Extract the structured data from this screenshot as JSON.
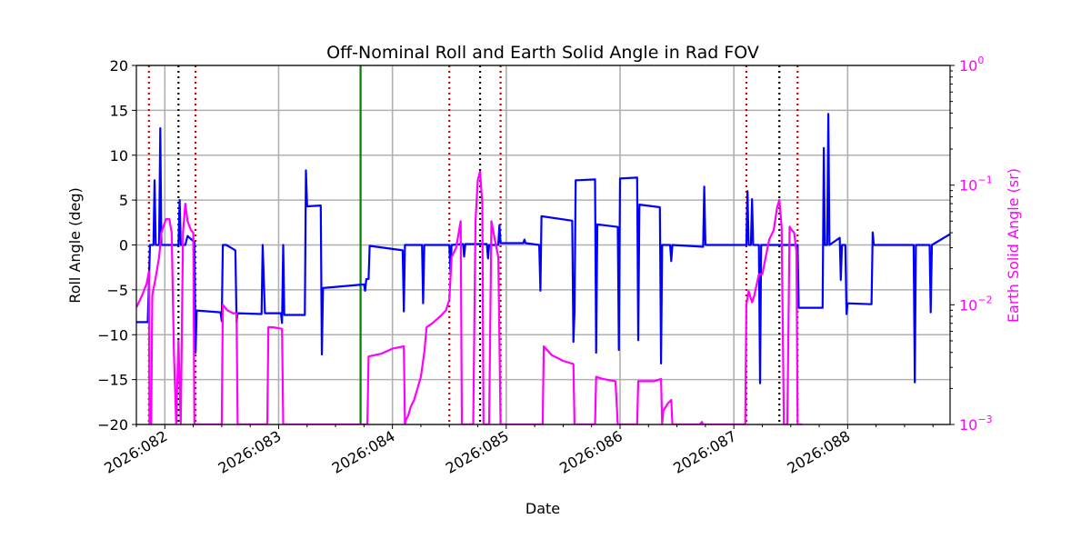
{
  "chart_data": {
    "type": "line",
    "title": "Off-Nominal Roll and Earth Solid Angle in Rad FOV",
    "xlabel": "Date",
    "ylabel": "Roll Angle (deg)",
    "y2label": "Earth Solid Angle (sr)",
    "xlim": [
      81.75,
      88.9
    ],
    "ylim": [
      -20,
      20
    ],
    "y2lim": [
      0.001,
      1
    ],
    "y2scale": "log",
    "grid": true,
    "xticks": [
      {
        "value": 82,
        "label": "2026:082"
      },
      {
        "value": 83,
        "label": "2026:083"
      },
      {
        "value": 84,
        "label": "2026:084"
      },
      {
        "value": 85,
        "label": "2026:085"
      },
      {
        "value": 86,
        "label": "2026:086"
      },
      {
        "value": 87,
        "label": "2026:087"
      },
      {
        "value": 88,
        "label": "2026:088"
      }
    ],
    "yticks": [
      {
        "value": 20,
        "label": "20"
      },
      {
        "value": 15,
        "label": "15"
      },
      {
        "value": 10,
        "label": "10"
      },
      {
        "value": 5,
        "label": "5"
      },
      {
        "value": 0,
        "label": "0"
      },
      {
        "value": -5,
        "label": "−5"
      },
      {
        "value": -10,
        "label": "−10"
      },
      {
        "value": -15,
        "label": "−15"
      },
      {
        "value": -20,
        "label": "−20"
      }
    ],
    "y2ticks": [
      {
        "value": 1,
        "base": "10",
        "exp": "0"
      },
      {
        "value": 0.1,
        "base": "10",
        "exp": "−1"
      },
      {
        "value": 0.01,
        "base": "10",
        "exp": "−2"
      },
      {
        "value": 0.001,
        "base": "10",
        "exp": "−3"
      }
    ],
    "colors": {
      "roll": "#0000ff",
      "earth": "#ff00ff",
      "now": "#008000",
      "window": "#cc0000",
      "center": "#000000",
      "grid": "#b0b0b0",
      "axis": "#000000"
    },
    "now_line": 83.72,
    "vlines": [
      {
        "x": 81.86,
        "kind": "window"
      },
      {
        "x": 82.12,
        "kind": "center"
      },
      {
        "x": 82.27,
        "kind": "window"
      },
      {
        "x": 84.5,
        "kind": "window"
      },
      {
        "x": 84.77,
        "kind": "center"
      },
      {
        "x": 84.95,
        "kind": "window"
      },
      {
        "x": 87.11,
        "kind": "window"
      },
      {
        "x": 87.4,
        "kind": "center"
      },
      {
        "x": 87.56,
        "kind": "window"
      }
    ],
    "series": [
      {
        "name": "Roll Angle",
        "axis": "left",
        "points": [
          [
            81.75,
            -8.6
          ],
          [
            81.85,
            -8.6
          ],
          [
            81.87,
            0
          ],
          [
            81.9,
            0
          ],
          [
            81.91,
            7.2
          ],
          [
            81.92,
            0
          ],
          [
            81.95,
            0
          ],
          [
            81.96,
            13
          ],
          [
            81.97,
            0
          ],
          [
            82.12,
            0
          ],
          [
            82.13,
            5
          ],
          [
            82.14,
            0
          ],
          [
            82.18,
            0
          ],
          [
            82.2,
            1
          ],
          [
            82.26,
            0.3
          ],
          [
            82.27,
            -12
          ],
          [
            82.28,
            -7.3
          ],
          [
            82.49,
            -7.5
          ],
          [
            82.5,
            -8.5
          ],
          [
            82.51,
            0
          ],
          [
            82.54,
            0
          ],
          [
            82.62,
            -0.6
          ],
          [
            82.63,
            -8.6
          ],
          [
            82.64,
            -7.6
          ],
          [
            82.85,
            -7.7
          ],
          [
            82.86,
            0
          ],
          [
            82.88,
            -7.6
          ],
          [
            83.02,
            -7.6
          ],
          [
            83.03,
            -8.7
          ],
          [
            83.04,
            0
          ],
          [
            83.05,
            -7.8
          ],
          [
            83.23,
            -7.8
          ],
          [
            83.24,
            8.3
          ],
          [
            83.25,
            4.3
          ],
          [
            83.37,
            4.4
          ],
          [
            83.38,
            -12.2
          ],
          [
            83.39,
            -4.8
          ],
          [
            83.75,
            -4.4
          ],
          [
            83.76,
            -5.1
          ],
          [
            83.77,
            -3.8
          ],
          [
            83.79,
            -3.8
          ],
          [
            83.8,
            -0.1
          ],
          [
            84.09,
            -0.6
          ],
          [
            84.1,
            -7.4
          ],
          [
            84.11,
            0
          ],
          [
            84.26,
            0
          ],
          [
            84.27,
            -6.5
          ],
          [
            84.28,
            0
          ],
          [
            84.5,
            0
          ],
          [
            84.51,
            -3
          ],
          [
            84.52,
            0
          ],
          [
            84.62,
            0.1
          ],
          [
            84.63,
            -1.3
          ],
          [
            84.64,
            0.1
          ],
          [
            84.83,
            0.1
          ],
          [
            84.84,
            -1.5
          ],
          [
            84.85,
            0
          ],
          [
            84.93,
            0
          ],
          [
            84.94,
            2.2
          ],
          [
            84.95,
            0.2
          ],
          [
            85.15,
            0.2
          ],
          [
            85.16,
            0.6
          ],
          [
            85.17,
            0.2
          ],
          [
            85.29,
            0
          ],
          [
            85.3,
            -5.1
          ],
          [
            85.31,
            3.2
          ],
          [
            85.58,
            2.7
          ],
          [
            85.59,
            -10.8
          ],
          [
            85.6,
            -7.5
          ],
          [
            85.61,
            7.2
          ],
          [
            85.78,
            7.3
          ],
          [
            85.79,
            -12
          ],
          [
            85.8,
            2.3
          ],
          [
            85.98,
            2
          ],
          [
            85.99,
            -11.7
          ],
          [
            86,
            7.4
          ],
          [
            86.15,
            7.5
          ],
          [
            86.16,
            -10.6
          ],
          [
            86.17,
            4.5
          ],
          [
            86.35,
            4.2
          ],
          [
            86.36,
            -13.2
          ],
          [
            86.37,
            0
          ],
          [
            86.44,
            0
          ],
          [
            86.45,
            -1.8
          ],
          [
            86.46,
            0
          ],
          [
            86.73,
            -0.2
          ],
          [
            86.74,
            6.5
          ],
          [
            86.75,
            0
          ],
          [
            87.11,
            0
          ],
          [
            87.12,
            6
          ],
          [
            87.13,
            0
          ],
          [
            87.15,
            0
          ],
          [
            87.16,
            5.1
          ],
          [
            87.17,
            0
          ],
          [
            87.22,
            0
          ],
          [
            87.23,
            -15.4
          ],
          [
            87.24,
            0
          ],
          [
            87.56,
            0
          ],
          [
            87.57,
            -7
          ],
          [
            87.78,
            -7
          ],
          [
            87.79,
            10.8
          ],
          [
            87.8,
            0
          ],
          [
            87.82,
            0
          ],
          [
            87.83,
            14.6
          ],
          [
            87.84,
            0
          ],
          [
            87.93,
            0.8
          ],
          [
            87.94,
            -3.9
          ],
          [
            87.95,
            0
          ],
          [
            87.98,
            0
          ],
          [
            87.99,
            -7.7
          ],
          [
            88,
            -6.5
          ],
          [
            88.21,
            -6.6
          ],
          [
            88.22,
            1.4
          ],
          [
            88.23,
            0
          ],
          [
            88.58,
            0
          ],
          [
            88.59,
            -15.3
          ],
          [
            88.6,
            0
          ],
          [
            88.72,
            0
          ],
          [
            88.73,
            -7.5
          ],
          [
            88.74,
            0
          ],
          [
            88.9,
            1.2
          ]
        ]
      },
      {
        "name": "Earth Solid Angle",
        "axis": "right",
        "points": [
          [
            81.75,
            0.0095
          ],
          [
            81.8,
            0.012
          ],
          [
            81.84,
            0.015
          ],
          [
            81.86,
            0.019
          ],
          [
            81.865,
            0.001
          ],
          [
            81.88,
            0.001
          ],
          [
            81.89,
            0.012
          ],
          [
            81.92,
            0.017
          ],
          [
            81.95,
            0.025
          ],
          [
            81.97,
            0.04
          ],
          [
            82.01,
            0.052
          ],
          [
            82.04,
            0.052
          ],
          [
            82.06,
            0.04
          ],
          [
            82.08,
            0.004
          ],
          [
            82.1,
            0.001
          ],
          [
            82.12,
            0.005
          ],
          [
            82.14,
            0.001
          ],
          [
            82.16,
            0.04
          ],
          [
            82.18,
            0.07
          ],
          [
            82.2,
            0.05
          ],
          [
            82.23,
            0.042
          ],
          [
            82.25,
            0.04
          ],
          [
            82.26,
            0.001
          ],
          [
            82.31,
            0.001
          ],
          [
            82.5,
            0.001
          ],
          [
            82.51,
            0.01
          ],
          [
            82.55,
            0.009
          ],
          [
            82.6,
            0.0085
          ],
          [
            82.63,
            0.0085
          ],
          [
            82.64,
            0.001
          ],
          [
            82.9,
            0.001
          ],
          [
            82.91,
            0.0065
          ],
          [
            82.95,
            0.0065
          ],
          [
            83.03,
            0.0063
          ],
          [
            83.04,
            0.001
          ],
          [
            83.78,
            0.001
          ],
          [
            83.79,
            0.0037
          ],
          [
            83.9,
            0.0039
          ],
          [
            84.0,
            0.0043
          ],
          [
            84.1,
            0.0045
          ],
          [
            84.11,
            0.001
          ],
          [
            84.12,
            0.0011
          ],
          [
            84.14,
            0.0012
          ],
          [
            84.16,
            0.0014
          ],
          [
            84.19,
            0.0016
          ],
          [
            84.22,
            0.002
          ],
          [
            84.25,
            0.0025
          ],
          [
            84.28,
            0.004
          ],
          [
            84.3,
            0.0065
          ],
          [
            84.35,
            0.007
          ],
          [
            84.42,
            0.008
          ],
          [
            84.47,
            0.009
          ],
          [
            84.5,
            0.011
          ],
          [
            84.52,
            0.025
          ],
          [
            84.56,
            0.03
          ],
          [
            84.6,
            0.05
          ],
          [
            84.61,
            0.001
          ],
          [
            84.71,
            0.001
          ],
          [
            84.73,
            0.05
          ],
          [
            84.75,
            0.11
          ],
          [
            84.77,
            0.13
          ],
          [
            84.79,
            0.07
          ],
          [
            84.8,
            0.001
          ],
          [
            84.85,
            0.001
          ],
          [
            84.87,
            0.05
          ],
          [
            84.9,
            0.035
          ],
          [
            84.93,
            0.025
          ],
          [
            84.95,
            0.001
          ],
          [
            85.32,
            0.001
          ],
          [
            85.33,
            0.0045
          ],
          [
            85.4,
            0.0038
          ],
          [
            85.5,
            0.0034
          ],
          [
            85.59,
            0.0032
          ],
          [
            85.6,
            0.001
          ],
          [
            85.78,
            0.001
          ],
          [
            85.79,
            0.0025
          ],
          [
            85.85,
            0.0024
          ],
          [
            85.96,
            0.0023
          ],
          [
            85.98,
            0.001
          ],
          [
            86.15,
            0.001
          ],
          [
            86.16,
            0.0023
          ],
          [
            86.3,
            0.0023
          ],
          [
            86.36,
            0.0024
          ],
          [
            86.37,
            0.001
          ],
          [
            86.38,
            0.0013
          ],
          [
            86.42,
            0.0015
          ],
          [
            86.45,
            0.0016
          ],
          [
            86.46,
            0.001
          ],
          [
            86.7,
            0.001
          ],
          [
            86.72,
            0.00105
          ],
          [
            86.73,
            0.001
          ],
          [
            87.1,
            0.001
          ],
          [
            87.11,
            0.01
          ],
          [
            87.13,
            0.013
          ],
          [
            87.16,
            0.0105
          ],
          [
            87.18,
            0.012
          ],
          [
            87.22,
            0.018
          ],
          [
            87.25,
            0.018
          ],
          [
            87.28,
            0.025
          ],
          [
            87.31,
            0.035
          ],
          [
            87.35,
            0.042
          ],
          [
            87.38,
            0.065
          ],
          [
            87.4,
            0.075
          ],
          [
            87.42,
            0.045
          ],
          [
            87.44,
            0.001
          ],
          [
            87.47,
            0.001
          ],
          [
            87.49,
            0.045
          ],
          [
            87.51,
            0.042
          ],
          [
            87.53,
            0.04
          ],
          [
            87.55,
            0.028
          ],
          [
            87.56,
            0.001
          ],
          [
            87.6,
            0.001
          ]
        ]
      }
    ]
  }
}
